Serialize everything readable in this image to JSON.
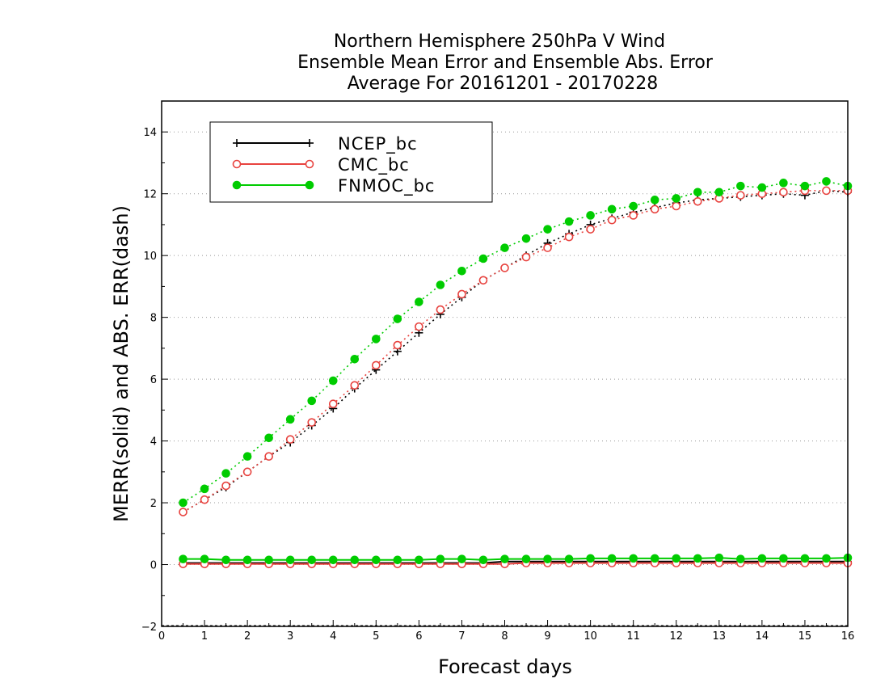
{
  "chart_data": {
    "type": "line",
    "title": [
      "Northern Hemisphere 250hPa V Wind",
      "Ensemble Mean Error and Ensemble Abs. Error",
      "Average For 20161201 - 20170228"
    ],
    "xlabel": "Forecast days",
    "ylabel": "MERR(solid) and ABS. ERR(dash)",
    "xlim": [
      0,
      16
    ],
    "ylim": [
      -2,
      15
    ],
    "xticks": [
      "0",
      "1",
      "2",
      "3",
      "4",
      "5",
      "6",
      "7",
      "8",
      "9",
      "10",
      "11",
      "12",
      "13",
      "14",
      "15",
      "16"
    ],
    "yticks": [
      "−2",
      "0",
      "2",
      "4",
      "6",
      "8",
      "10",
      "12",
      "14"
    ],
    "grid": "horizontal dotted",
    "legend_position": "top-left",
    "x": [
      0.5,
      1,
      1.5,
      2,
      2.5,
      3,
      3.5,
      4,
      4.5,
      5,
      5.5,
      6,
      6.5,
      7,
      7.5,
      8,
      8.5,
      9,
      9.5,
      10,
      10.5,
      11,
      11.5,
      12,
      12.5,
      13,
      13.5,
      14,
      14.5,
      15,
      15.5,
      16
    ],
    "series": [
      {
        "name": "NCEP_bc",
        "color": "#000000",
        "marker": "plus",
        "abs_err": [
          1.7,
          2.1,
          2.5,
          3.0,
          3.5,
          3.95,
          4.5,
          5.05,
          5.7,
          6.3,
          6.9,
          7.5,
          8.1,
          8.65,
          9.2,
          9.6,
          10.0,
          10.4,
          10.7,
          11.0,
          11.2,
          11.4,
          11.55,
          11.7,
          11.8,
          11.85,
          11.9,
          11.95,
          12.0,
          11.95,
          12.1,
          12.05
        ],
        "mean_err": [
          0.05,
          0.05,
          0.05,
          0.05,
          0.05,
          0.05,
          0.05,
          0.05,
          0.05,
          0.05,
          0.05,
          0.05,
          0.05,
          0.05,
          0.05,
          0.1,
          0.1,
          0.1,
          0.1,
          0.1,
          0.1,
          0.1,
          0.1,
          0.1,
          0.1,
          0.1,
          0.1,
          0.1,
          0.1,
          0.1,
          0.1,
          0.1
        ]
      },
      {
        "name": "CMC_bc",
        "color": "#e8433f",
        "marker": "open-circle",
        "abs_err": [
          1.7,
          2.1,
          2.55,
          3.0,
          3.5,
          4.05,
          4.6,
          5.2,
          5.8,
          6.45,
          7.1,
          7.7,
          8.25,
          8.75,
          9.2,
          9.6,
          9.95,
          10.25,
          10.6,
          10.85,
          11.15,
          11.3,
          11.5,
          11.6,
          11.75,
          11.85,
          11.95,
          12.0,
          12.05,
          12.1,
          12.1,
          12.1
        ],
        "mean_err": [
          0.02,
          0.02,
          0.02,
          0.02,
          0.02,
          0.02,
          0.02,
          0.02,
          0.02,
          0.02,
          0.02,
          0.02,
          0.02,
          0.02,
          0.02,
          0.02,
          0.05,
          0.05,
          0.05,
          0.05,
          0.05,
          0.05,
          0.05,
          0.05,
          0.05,
          0.05,
          0.05,
          0.05,
          0.05,
          0.05,
          0.05,
          0.05
        ]
      },
      {
        "name": "FNMOC_bc",
        "color": "#00cc00",
        "marker": "filled-circle",
        "abs_err": [
          2.0,
          2.45,
          2.95,
          3.5,
          4.1,
          4.7,
          5.3,
          5.95,
          6.65,
          7.3,
          7.95,
          8.5,
          9.05,
          9.5,
          9.9,
          10.25,
          10.55,
          10.85,
          11.1,
          11.3,
          11.5,
          11.6,
          11.8,
          11.85,
          12.05,
          12.05,
          12.25,
          12.2,
          12.35,
          12.25,
          12.4,
          12.25
        ],
        "mean_err": [
          0.18,
          0.18,
          0.15,
          0.15,
          0.15,
          0.15,
          0.15,
          0.15,
          0.15,
          0.15,
          0.15,
          0.15,
          0.18,
          0.18,
          0.15,
          0.18,
          0.18,
          0.18,
          0.18,
          0.2,
          0.2,
          0.2,
          0.2,
          0.2,
          0.2,
          0.22,
          0.18,
          0.2,
          0.2,
          0.2,
          0.2,
          0.22
        ]
      }
    ]
  }
}
